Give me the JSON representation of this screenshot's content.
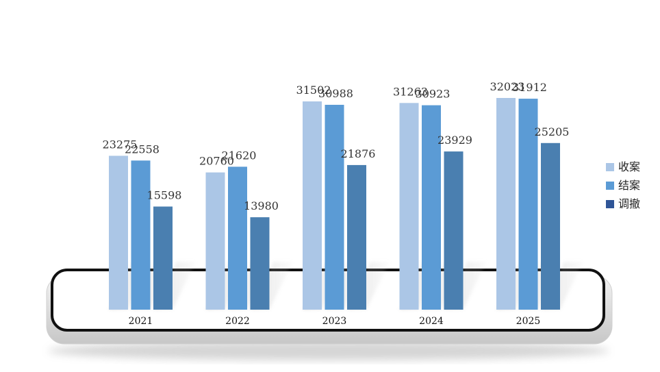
{
  "chart_data": {
    "type": "bar",
    "title": "",
    "xlabel": "",
    "ylabel": "",
    "categories": [
      "2021",
      "2022",
      "2023",
      "2024",
      "2025"
    ],
    "series": [
      {
        "name": "收案",
        "values": [
          23275,
          20760,
          31502,
          31263,
          32023
        ],
        "color": "#abc6e6"
      },
      {
        "name": "结案",
        "values": [
          22558,
          21620,
          30988,
          30923,
          31912
        ],
        "color": "#5b9bd5"
      },
      {
        "name": "调撤",
        "values": [
          15598,
          13980,
          21876,
          23929,
          25205
        ],
        "color": "#4a7fb0"
      }
    ],
    "ylim": [
      0,
      32023
    ],
    "grid": false,
    "legend_position": "right"
  }
}
